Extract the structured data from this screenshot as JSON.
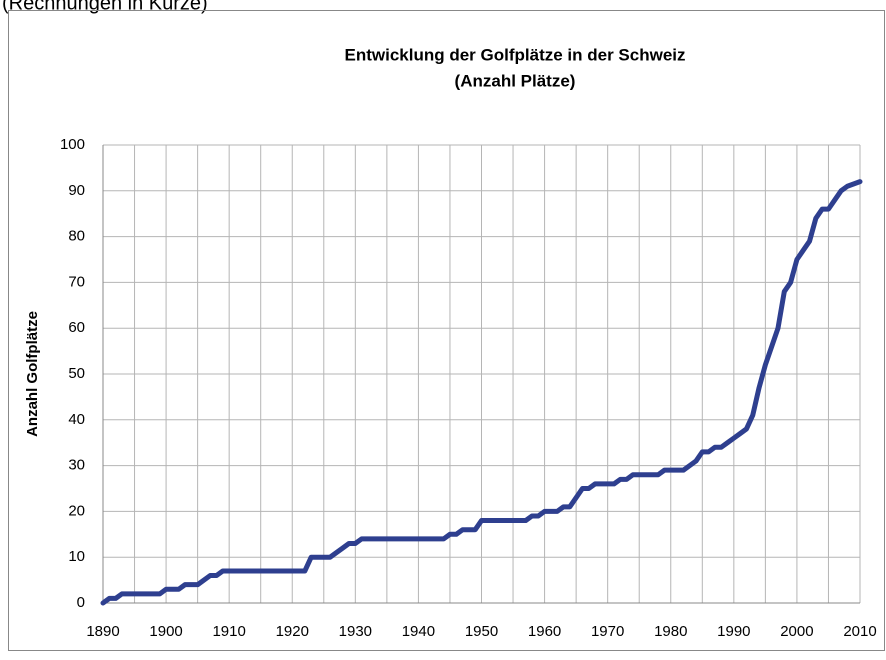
{
  "page_note": "(Rechnungen in Kürze)",
  "chart_data": {
    "type": "line",
    "title": [
      "Entwicklung der Golfplätze in der Schweiz",
      "(Anzahl Plätze)"
    ],
    "ylabel": "Anzahl Golfplätze",
    "x": [
      1890,
      1891,
      1892,
      1893,
      1899,
      1900,
      1902,
      1903,
      1905,
      1907,
      1908,
      1909,
      1922,
      1923,
      1926,
      1928,
      1929,
      1930,
      1931,
      1944,
      1945,
      1946,
      1947,
      1949,
      1950,
      1957,
      1958,
      1959,
      1960,
      1962,
      1963,
      1964,
      1966,
      1967,
      1968,
      1971,
      1972,
      1973,
      1974,
      1978,
      1979,
      1982,
      1983,
      1984,
      1985,
      1986,
      1987,
      1988,
      1989,
      1990,
      1991,
      1992,
      1993,
      1994,
      1995,
      1996,
      1997,
      1998,
      1999,
      2000,
      2001,
      2002,
      2003,
      2004,
      2005,
      2006,
      2007,
      2008,
      2010
    ],
    "series": [
      {
        "name": "Golfplätze",
        "color": "#2e3f8f",
        "values": [
          0,
          1,
          1,
          2,
          2,
          3,
          3,
          4,
          4,
          6,
          6,
          7,
          7,
          10,
          10,
          12,
          13,
          13,
          14,
          14,
          15,
          15,
          16,
          16,
          18,
          18,
          19,
          19,
          20,
          20,
          21,
          21,
          25,
          25,
          26,
          26,
          27,
          27,
          28,
          28,
          29,
          29,
          30,
          31,
          33,
          33,
          34,
          34,
          35,
          36,
          37,
          38,
          41,
          47,
          52,
          56,
          60,
          68,
          70,
          75,
          77,
          79,
          84,
          86,
          86,
          88,
          90,
          91,
          92
        ]
      }
    ],
    "xlim": [
      1890,
      2010
    ],
    "ylim": [
      0,
      100
    ],
    "xticks": [
      1890,
      1900,
      1910,
      1920,
      1930,
      1940,
      1950,
      1960,
      1970,
      1980,
      1990,
      2000,
      2010
    ],
    "xminor_ticks": [
      1895,
      1905,
      1915,
      1925,
      1935,
      1945,
      1955,
      1965,
      1975,
      1985,
      1995,
      2005
    ],
    "yticks": [
      0,
      10,
      20,
      30,
      40,
      50,
      60,
      70,
      80,
      90,
      100
    ],
    "grid": true
  }
}
